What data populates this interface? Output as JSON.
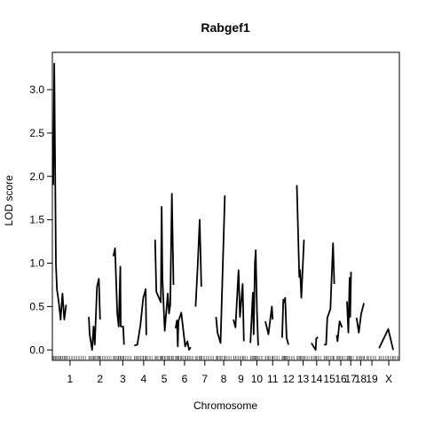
{
  "chart_data": {
    "type": "line",
    "title": "Rabgef1",
    "xlabel": "Chromosome",
    "ylabel": "LOD score",
    "ylim": [
      -0.12,
      3.43
    ],
    "yticks": [
      0.0,
      0.5,
      1.0,
      1.5,
      2.0,
      2.5,
      3.0
    ],
    "ytick_labels": [
      "0.0",
      "0.5",
      "1.0",
      "1.5",
      "2.0",
      "2.5",
      "3.0"
    ],
    "grid": false,
    "legend": "none",
    "chromosomes": [
      {
        "name": "1",
        "length": 16.4,
        "points": [
          [
            0,
            1.9
          ],
          [
            0.5,
            3.3
          ],
          [
            1.3,
            1.0
          ],
          [
            1.8,
            0.7
          ],
          [
            2.7,
            0.55
          ],
          [
            3.6,
            0.35
          ],
          [
            4.5,
            0.65
          ],
          [
            5.4,
            0.35
          ],
          [
            6.3,
            0.52
          ]
        ]
      },
      {
        "name": "2",
        "length": 11.0,
        "points": [
          [
            0,
            0.38
          ],
          [
            0.4,
            0.18
          ],
          [
            1.6,
            0.0
          ],
          [
            2.3,
            0.27
          ],
          [
            2.9,
            0.06
          ],
          [
            4.0,
            0.73
          ],
          [
            4.9,
            0.82
          ],
          [
            5.5,
            0.35
          ]
        ]
      },
      {
        "name": "3",
        "length": 9.2,
        "points": [
          [
            0,
            1.08
          ],
          [
            0.8,
            1.17
          ],
          [
            1.9,
            0.42
          ],
          [
            2.6,
            0.27
          ],
          [
            3.4,
            0.96
          ],
          [
            3.6,
            0.27
          ],
          [
            4.8,
            0.27
          ],
          [
            5.2,
            0.06
          ]
        ]
      },
      {
        "name": "4",
        "length": 9.2,
        "points": [
          [
            0,
            0.05
          ],
          [
            1.5,
            0.06
          ],
          [
            3.0,
            0.28
          ],
          [
            4.4,
            0.6
          ],
          [
            5.6,
            0.7
          ],
          [
            5.9,
            0.17
          ]
        ]
      },
      {
        "name": "5",
        "length": 9.0,
        "points": [
          [
            0,
            1.27
          ],
          [
            0.6,
            0.67
          ],
          [
            2.8,
            0.55
          ],
          [
            3.2,
            1.65
          ],
          [
            3.6,
            0.82
          ],
          [
            4.7,
            0.22
          ],
          [
            6.2,
            0.65
          ],
          [
            6.8,
            0.42
          ],
          [
            7.4,
            0.52
          ],
          [
            8.2,
            1.8
          ],
          [
            9.0,
            0.75
          ]
        ]
      },
      {
        "name": "6",
        "length": 8.8,
        "points": [
          [
            0,
            0.25
          ],
          [
            0.7,
            0.34
          ],
          [
            1.1,
            0.04
          ],
          [
            1.4,
            0.33
          ],
          [
            2.8,
            0.43
          ],
          [
            4.7,
            0.04
          ],
          [
            5.8,
            0.1
          ],
          [
            6.6,
            0.0
          ],
          [
            7.4,
            0.03
          ]
        ]
      },
      {
        "name": "7",
        "length": 9.0,
        "points": [
          [
            0,
            0.5
          ],
          [
            1.0,
            0.96
          ],
          [
            2.0,
            1.5
          ],
          [
            2.8,
            0.73
          ]
        ]
      },
      {
        "name": "8",
        "length": 7.5,
        "points": [
          [
            0,
            0.38
          ],
          [
            0.7,
            0.2
          ],
          [
            2.2,
            0.08
          ],
          [
            4.3,
            1.78
          ]
        ]
      },
      {
        "name": "9",
        "length": 7.3,
        "points": [
          [
            0,
            0.35
          ],
          [
            1.0,
            0.26
          ],
          [
            2.5,
            0.92
          ],
          [
            3.2,
            0.38
          ],
          [
            4.5,
            0.76
          ],
          [
            5.1,
            0.1
          ]
        ]
      },
      {
        "name": "10",
        "length": 6.3,
        "points": [
          [
            0,
            0.08
          ],
          [
            1.2,
            0.66
          ],
          [
            1.6,
            0.18
          ],
          [
            2.2,
            1.0
          ],
          [
            2.6,
            1.15
          ],
          [
            3.2,
            0.45
          ],
          [
            3.8,
            0.05
          ]
        ]
      },
      {
        "name": "11",
        "length": 7.2,
        "points": [
          [
            0,
            0.33
          ],
          [
            1.5,
            0.18
          ],
          [
            3.2,
            0.5
          ],
          [
            3.6,
            0.35
          ]
        ]
      },
      {
        "name": "12",
        "length": 6.2,
        "points": [
          [
            0,
            0.14
          ],
          [
            0.6,
            0.58
          ],
          [
            1.2,
            0.55
          ],
          [
            1.5,
            0.6
          ],
          [
            2.2,
            0.14
          ],
          [
            3.1,
            0.06
          ]
        ]
      },
      {
        "name": "13",
        "length": 6.1,
        "points": [
          [
            0,
            1.9
          ],
          [
            1.2,
            0.84
          ],
          [
            1.6,
            0.92
          ],
          [
            2.2,
            0.6
          ],
          [
            3.5,
            1.27
          ]
        ]
      },
      {
        "name": "14",
        "length": 5.2,
        "points": [
          [
            0,
            0.08
          ],
          [
            2.1,
            0.0
          ],
          [
            2.4,
            0.13
          ],
          [
            3.2,
            0.15
          ]
        ]
      },
      {
        "name": "15",
        "length": 5.2,
        "points": [
          [
            0,
            0.06
          ],
          [
            1.0,
            0.06
          ],
          [
            1.6,
            0.37
          ],
          [
            3.1,
            0.47
          ],
          [
            4.4,
            1.23
          ],
          [
            5.0,
            0.76
          ]
        ]
      },
      {
        "name": "16",
        "length": 4.0,
        "points": [
          [
            0,
            0.17
          ],
          [
            0.4,
            0.1
          ],
          [
            1.4,
            0.33
          ],
          [
            2.6,
            0.26
          ]
        ]
      },
      {
        "name": "17",
        "length": 3.7,
        "points": [
          [
            0,
            0.56
          ],
          [
            0.7,
            0.2
          ],
          [
            1.3,
            0.83
          ],
          [
            1.6,
            0.38
          ],
          [
            2.0,
            0.9
          ]
        ]
      },
      {
        "name": "18",
        "length": 4.0,
        "points": [
          [
            0,
            0.37
          ],
          [
            1.1,
            0.2
          ],
          [
            2.2,
            0.41
          ],
          [
            3.6,
            0.54
          ]
        ]
      },
      {
        "name": "19",
        "length": 5.0,
        "points": [
          [
            0,
            0.0
          ]
        ]
      },
      {
        "name": "X",
        "length": 9.5,
        "points": [
          [
            0,
            0.02
          ],
          [
            4.5,
            0.24
          ],
          [
            6.9,
            0.0
          ]
        ]
      }
    ]
  }
}
